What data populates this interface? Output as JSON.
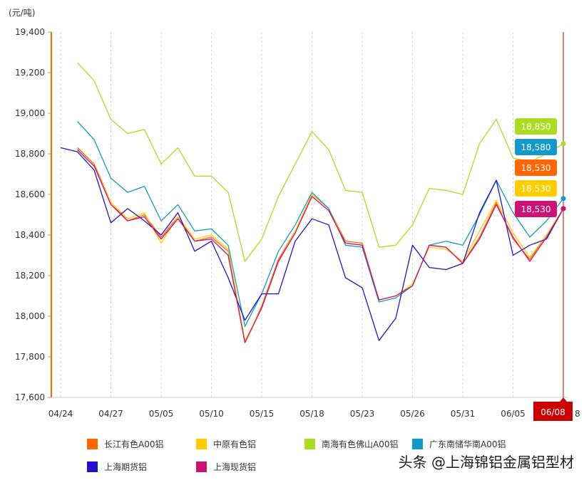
{
  "chart_data": {
    "type": "line",
    "unit_label": "(元/吨)",
    "ylim": [
      17600,
      19400
    ],
    "y_ticks": [
      "17,600",
      "17,800",
      "18,000",
      "18,200",
      "18,400",
      "18,600",
      "18,800",
      "19,000",
      "19,200",
      "19,400"
    ],
    "x_tick_labels": [
      "04/24",
      "04/27",
      "05/05",
      "05/10",
      "05/15",
      "05/18",
      "05/23",
      "05/26",
      "05/31",
      "06/05"
    ],
    "x_tick_partial": "8",
    "current_date_label": "06/08",
    "series": [
      {
        "name": "长江有色A00铝",
        "color": "#ff6600",
        "values": [
          null,
          18830,
          18750,
          18560,
          18470,
          18500,
          18390,
          18490,
          18370,
          18390,
          18320,
          17870,
          18050,
          18280,
          18420,
          18600,
          18530,
          18370,
          18360,
          18080,
          18100,
          18150,
          18350,
          18340,
          18260,
          18390,
          18560,
          18380,
          18280,
          18400,
          18530
        ]
      },
      {
        "name": "中原有色铝",
        "color": "#ffcc00",
        "values": [
          null,
          18820,
          18740,
          18560,
          18480,
          18510,
          18360,
          18490,
          18380,
          18400,
          18330,
          17880,
          18040,
          18270,
          18420,
          18600,
          18530,
          18360,
          18350,
          18080,
          18100,
          18160,
          18340,
          18330,
          18270,
          18420,
          18570,
          18410,
          18290,
          18400,
          18530
        ]
      },
      {
        "name": "南海有色佛山A00铝",
        "color": "#aadd22",
        "values": [
          null,
          19250,
          19160,
          18970,
          18900,
          18920,
          18750,
          18830,
          18690,
          18690,
          18610,
          18270,
          18380,
          18590,
          18750,
          18910,
          18820,
          18620,
          18610,
          18340,
          18350,
          18450,
          18630,
          18620,
          18600,
          18850,
          18970,
          18780,
          18760,
          18800,
          18850
        ]
      },
      {
        "name": "广东南储华南A00铝",
        "color": "#1199cc",
        "values": [
          null,
          18960,
          18870,
          18680,
          18610,
          18640,
          18470,
          18550,
          18420,
          18430,
          18350,
          17950,
          18110,
          18320,
          18450,
          18610,
          18530,
          18350,
          18340,
          18070,
          18090,
          18150,
          18350,
          18370,
          18350,
          18500,
          18670,
          18510,
          18390,
          18470,
          18580
        ]
      },
      {
        "name": "上海期货铝",
        "color": "#2211cc",
        "values": [
          18830,
          18810,
          18720,
          18460,
          18530,
          18470,
          18400,
          18510,
          18320,
          18370,
          18190,
          17980,
          18110,
          18110,
          18370,
          18480,
          18450,
          18190,
          18140,
          17880,
          17990,
          18350,
          18240,
          18230,
          18260,
          18510,
          18670,
          18300,
          18350,
          18380,
          18530
        ]
      },
      {
        "name": "上海现货铝",
        "color": "#cc1177",
        "values": [
          null,
          18820,
          18740,
          18550,
          18470,
          18490,
          18380,
          18480,
          18370,
          18380,
          18300,
          17870,
          18040,
          18270,
          18410,
          18590,
          18520,
          18360,
          18350,
          18080,
          18100,
          18150,
          18350,
          18340,
          18260,
          18380,
          18550,
          18390,
          18270,
          18390,
          18530
        ]
      }
    ],
    "end_value_badges": [
      {
        "label": "18,850",
        "color": "#aadd22"
      },
      {
        "label": "18,580",
        "color": "#1199cc"
      },
      {
        "label": "18,530",
        "color": "#ff6600"
      },
      {
        "label": "18,530",
        "color": "#ffcc00"
      },
      {
        "label": "18,530",
        "color": "#cc1177"
      }
    ]
  },
  "legend": [
    {
      "label": "长江有色A00铝",
      "color": "#ff6600"
    },
    {
      "label": "中原有色铝",
      "color": "#ffcc00"
    },
    {
      "label": "南海有色佛山A00铝",
      "color": "#aadd22"
    },
    {
      "label": "广东南储华南A00铝",
      "color": "#1199cc"
    },
    {
      "label": "上海期货铝",
      "color": "#2211cc"
    },
    {
      "label": "上海现货铝",
      "color": "#cc1177"
    }
  ],
  "watermark": "头条 @上海锦铝金属铝型材"
}
